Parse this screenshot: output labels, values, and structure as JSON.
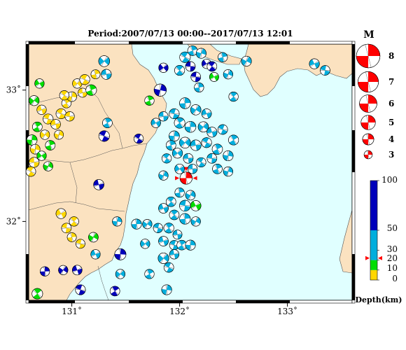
{
  "title": "Period:2007/07/13 00:00--2017/07/13 12:01",
  "map": {
    "lon_range": [
      130.6,
      133.6
    ],
    "lat_range": [
      31.4,
      33.35
    ],
    "lon_ticks": [
      {
        "value": 131,
        "label": "131˚"
      },
      {
        "value": 132,
        "label": "132˚"
      },
      {
        "value": 133,
        "label": "133˚"
      }
    ],
    "lat_ticks": [
      {
        "value": 33,
        "label": "33˚"
      },
      {
        "value": 32,
        "label": "32˚"
      }
    ],
    "colors": {
      "land": "#fbe2c0",
      "sea": "#e0ffff",
      "coast": "#555555",
      "red": "#ff0000"
    }
  },
  "magnitude_legend": {
    "header": "M",
    "entries": [
      {
        "label": "8",
        "mag": 8
      },
      {
        "label": "7",
        "mag": 7
      },
      {
        "label": "6",
        "mag": 6
      },
      {
        "label": "5",
        "mag": 5
      },
      {
        "label": "4",
        "mag": 4
      },
      {
        "label": "3",
        "mag": 3
      }
    ]
  },
  "depth_legend": {
    "unit_label": "Depth(km)",
    "max": 100,
    "ticks": [
      {
        "label": "100",
        "value": 100
      },
      {
        "label": "50",
        "value": 50
      },
      {
        "label": "30",
        "value": 30
      },
      {
        "label": "20",
        "value": 20
      },
      {
        "label": "10",
        "value": 10
      },
      {
        "label": "0",
        "value": 0
      }
    ],
    "bands": [
      {
        "from": 0,
        "to": 10,
        "color": "#ffd700"
      },
      {
        "from": 10,
        "to": 20,
        "color": "#00dd00"
      },
      {
        "from": 20,
        "to": 50,
        "color": "#00aedd"
      },
      {
        "from": 50,
        "to": 100,
        "color": "#0000bb"
      }
    ],
    "pointer_depth": 22
  },
  "events": [
    {
      "lon": 132.06,
      "lat": 32.33,
      "depth": 22,
      "mag": 4.3,
      "highlight": true
    },
    {
      "lon": 130.65,
      "lat": 32.92,
      "depth": 12,
      "mag": 3.6
    },
    {
      "lon": 130.72,
      "lat": 32.85,
      "depth": 5,
      "mag": 3.4
    },
    {
      "lon": 130.78,
      "lat": 32.78,
      "depth": 4,
      "mag": 3.6
    },
    {
      "lon": 130.68,
      "lat": 32.72,
      "depth": 12,
      "mag": 3.5
    },
    {
      "lon": 130.63,
      "lat": 32.62,
      "depth": 14,
      "mag": 3.7
    },
    {
      "lon": 130.75,
      "lat": 32.66,
      "depth": 8,
      "mag": 3.4
    },
    {
      "lon": 130.85,
      "lat": 32.74,
      "depth": 6,
      "mag": 3.5
    },
    {
      "lon": 130.9,
      "lat": 32.82,
      "depth": 7,
      "mag": 3.6
    },
    {
      "lon": 130.95,
      "lat": 32.9,
      "depth": 5,
      "mag": 3.4
    },
    {
      "lon": 131.0,
      "lat": 32.95,
      "depth": 6,
      "mag": 3.5
    },
    {
      "lon": 131.05,
      "lat": 33.05,
      "depth": 8,
      "mag": 3.4
    },
    {
      "lon": 131.1,
      "lat": 32.98,
      "depth": 4,
      "mag": 3.3
    },
    {
      "lon": 131.12,
      "lat": 33.08,
      "depth": 5,
      "mag": 3.6
    },
    {
      "lon": 131.18,
      "lat": 33.0,
      "depth": 12,
      "mag": 3.8
    },
    {
      "lon": 130.66,
      "lat": 32.55,
      "depth": 6,
      "mag": 3.5
    },
    {
      "lon": 130.72,
      "lat": 32.5,
      "depth": 13,
      "mag": 3.4
    },
    {
      "lon": 130.65,
      "lat": 32.45,
      "depth": 8,
      "mag": 3.6
    },
    {
      "lon": 130.62,
      "lat": 32.38,
      "depth": 5,
      "mag": 3.5
    },
    {
      "lon": 130.8,
      "lat": 32.58,
      "depth": 12,
      "mag": 3.5
    },
    {
      "lon": 130.88,
      "lat": 32.66,
      "depth": 9,
      "mag": 3.3
    },
    {
      "lon": 130.7,
      "lat": 33.05,
      "depth": 14,
      "mag": 3.4
    },
    {
      "lon": 130.98,
      "lat": 32.8,
      "depth": 4,
      "mag": 3.4
    },
    {
      "lon": 130.93,
      "lat": 32.96,
      "depth": 6,
      "mag": 3.4
    },
    {
      "lon": 131.22,
      "lat": 33.12,
      "depth": 4,
      "mag": 3.3
    },
    {
      "lon": 130.78,
      "lat": 32.42,
      "depth": 13,
      "mag": 3.4
    },
    {
      "lon": 130.9,
      "lat": 32.06,
      "depth": 5,
      "mag": 3.6
    },
    {
      "lon": 130.95,
      "lat": 31.95,
      "depth": 4,
      "mag": 3.5
    },
    {
      "lon": 131.02,
      "lat": 32.0,
      "depth": 5,
      "mag": 3.4
    },
    {
      "lon": 131.0,
      "lat": 31.88,
      "depth": 8,
      "mag": 3.3
    },
    {
      "lon": 131.2,
      "lat": 31.88,
      "depth": 14,
      "mag": 3.5
    },
    {
      "lon": 131.22,
      "lat": 31.75,
      "depth": 28,
      "mag": 3.4
    },
    {
      "lon": 131.08,
      "lat": 31.83,
      "depth": 8,
      "mag": 3.3
    },
    {
      "lon": 130.68,
      "lat": 31.45,
      "depth": 14,
      "mag": 3.8
    },
    {
      "lon": 130.75,
      "lat": 31.62,
      "depth": 60,
      "mag": 3.4
    },
    {
      "lon": 130.92,
      "lat": 31.63,
      "depth": 70,
      "mag": 3.4
    },
    {
      "lon": 131.05,
      "lat": 31.63,
      "depth": 60,
      "mag": 3.5
    },
    {
      "lon": 131.08,
      "lat": 31.48,
      "depth": 70,
      "mag": 3.6
    },
    {
      "lon": 131.4,
      "lat": 31.47,
      "depth": 60,
      "mag": 3.5
    },
    {
      "lon": 131.45,
      "lat": 31.75,
      "depth": 80,
      "mag": 4.0
    },
    {
      "lon": 131.45,
      "lat": 31.6,
      "depth": 40,
      "mag": 3.4
    },
    {
      "lon": 131.25,
      "lat": 32.28,
      "depth": 80,
      "mag": 3.7
    },
    {
      "lon": 131.3,
      "lat": 32.65,
      "depth": 80,
      "mag": 3.8
    },
    {
      "lon": 131.33,
      "lat": 32.75,
      "depth": 30,
      "mag": 3.5
    },
    {
      "lon": 131.42,
      "lat": 32.0,
      "depth": 30,
      "mag": 3.4
    },
    {
      "lon": 131.3,
      "lat": 33.22,
      "depth": 25,
      "mag": 3.9
    },
    {
      "lon": 131.32,
      "lat": 33.12,
      "depth": 30,
      "mag": 3.6
    },
    {
      "lon": 131.62,
      "lat": 32.63,
      "depth": 60,
      "mag": 3.4
    },
    {
      "lon": 131.72,
      "lat": 32.92,
      "depth": 18,
      "mag": 3.4
    },
    {
      "lon": 131.82,
      "lat": 33.0,
      "depth": 70,
      "mag": 4.3
    },
    {
      "lon": 131.85,
      "lat": 33.17,
      "depth": 70,
      "mag": 3.4
    },
    {
      "lon": 131.85,
      "lat": 32.8,
      "depth": 35,
      "mag": 3.4
    },
    {
      "lon": 132.05,
      "lat": 33.25,
      "depth": 40,
      "mag": 3.8
    },
    {
      "lon": 132.12,
      "lat": 33.3,
      "depth": 35,
      "mag": 3.5
    },
    {
      "lon": 132.2,
      "lat": 33.28,
      "depth": 45,
      "mag": 3.6
    },
    {
      "lon": 132.25,
      "lat": 33.2,
      "depth": 55,
      "mag": 3.4
    },
    {
      "lon": 132.1,
      "lat": 33.18,
      "depth": 70,
      "mag": 3.5
    },
    {
      "lon": 132.3,
      "lat": 33.18,
      "depth": 80,
      "mag": 3.5
    },
    {
      "lon": 132.4,
      "lat": 33.25,
      "depth": 35,
      "mag": 3.4
    },
    {
      "lon": 132.45,
      "lat": 33.12,
      "depth": 40,
      "mag": 3.4
    },
    {
      "lon": 132.32,
      "lat": 33.1,
      "depth": 15,
      "mag": 3.3
    },
    {
      "lon": 132.15,
      "lat": 33.1,
      "depth": 60,
      "mag": 3.5
    },
    {
      "lon": 132.0,
      "lat": 33.15,
      "depth": 35,
      "mag": 3.6
    },
    {
      "lon": 132.18,
      "lat": 33.02,
      "depth": 40,
      "mag": 3.4
    },
    {
      "lon": 132.62,
      "lat": 33.22,
      "depth": 45,
      "mag": 3.6
    },
    {
      "lon": 133.25,
      "lat": 33.2,
      "depth": 40,
      "mag": 3.6
    },
    {
      "lon": 133.35,
      "lat": 33.15,
      "depth": 35,
      "mag": 3.5
    },
    {
      "lon": 132.5,
      "lat": 32.95,
      "depth": 35,
      "mag": 3.4
    },
    {
      "lon": 132.05,
      "lat": 32.9,
      "depth": 40,
      "mag": 3.9
    },
    {
      "lon": 132.15,
      "lat": 32.85,
      "depth": 35,
      "mag": 3.7
    },
    {
      "lon": 132.25,
      "lat": 32.82,
      "depth": 40,
      "mag": 3.5
    },
    {
      "lon": 131.95,
      "lat": 32.82,
      "depth": 45,
      "mag": 3.6
    },
    {
      "lon": 132.0,
      "lat": 32.75,
      "depth": 35,
      "mag": 3.8
    },
    {
      "lon": 132.1,
      "lat": 32.72,
      "depth": 40,
      "mag": 3.9
    },
    {
      "lon": 132.22,
      "lat": 32.72,
      "depth": 35,
      "mag": 3.7
    },
    {
      "lon": 132.3,
      "lat": 32.68,
      "depth": 40,
      "mag": 3.6
    },
    {
      "lon": 132.4,
      "lat": 32.7,
      "depth": 35,
      "mag": 3.5
    },
    {
      "lon": 132.5,
      "lat": 32.62,
      "depth": 40,
      "mag": 3.6
    },
    {
      "lon": 131.95,
      "lat": 32.65,
      "depth": 45,
      "mag": 3.7
    },
    {
      "lon": 132.05,
      "lat": 32.6,
      "depth": 35,
      "mag": 3.9
    },
    {
      "lon": 132.15,
      "lat": 32.58,
      "depth": 40,
      "mag": 3.8
    },
    {
      "lon": 132.25,
      "lat": 32.6,
      "depth": 35,
      "mag": 3.6
    },
    {
      "lon": 132.35,
      "lat": 32.55,
      "depth": 40,
      "mag": 3.7
    },
    {
      "lon": 132.45,
      "lat": 32.5,
      "depth": 35,
      "mag": 3.6
    },
    {
      "lon": 131.98,
      "lat": 32.52,
      "depth": 40,
      "mag": 3.6
    },
    {
      "lon": 132.08,
      "lat": 32.48,
      "depth": 35,
      "mag": 3.5
    },
    {
      "lon": 132.2,
      "lat": 32.45,
      "depth": 40,
      "mag": 3.4
    },
    {
      "lon": 132.35,
      "lat": 32.4,
      "depth": 35,
      "mag": 3.5
    },
    {
      "lon": 132.45,
      "lat": 32.38,
      "depth": 40,
      "mag": 3.4
    },
    {
      "lon": 132.0,
      "lat": 32.4,
      "depth": 35,
      "mag": 3.5
    },
    {
      "lon": 132.12,
      "lat": 32.4,
      "depth": 40,
      "mag": 3.4
    },
    {
      "lon": 131.88,
      "lat": 32.48,
      "depth": 45,
      "mag": 3.4
    },
    {
      "lon": 131.92,
      "lat": 32.58,
      "depth": 35,
      "mag": 3.5
    },
    {
      "lon": 131.85,
      "lat": 32.35,
      "depth": 45,
      "mag": 3.4
    },
    {
      "lon": 131.78,
      "lat": 32.75,
      "depth": 40,
      "mag": 3.4
    },
    {
      "lon": 132.3,
      "lat": 32.48,
      "depth": 45,
      "mag": 3.5
    },
    {
      "lon": 131.92,
      "lat": 32.15,
      "depth": 35,
      "mag": 3.5
    },
    {
      "lon": 132.0,
      "lat": 32.22,
      "depth": 30,
      "mag": 3.4
    },
    {
      "lon": 132.1,
      "lat": 32.2,
      "depth": 35,
      "mag": 3.5
    },
    {
      "lon": 132.15,
      "lat": 32.12,
      "depth": 18,
      "mag": 3.7
    },
    {
      "lon": 132.05,
      "lat": 32.12,
      "depth": 25,
      "mag": 3.9
    },
    {
      "lon": 131.95,
      "lat": 32.05,
      "depth": 40,
      "mag": 3.5
    },
    {
      "lon": 132.05,
      "lat": 32.02,
      "depth": 35,
      "mag": 3.8
    },
    {
      "lon": 132.15,
      "lat": 32.0,
      "depth": 30,
      "mag": 3.4
    },
    {
      "lon": 131.85,
      "lat": 32.1,
      "depth": 40,
      "mag": 3.5
    },
    {
      "lon": 131.8,
      "lat": 31.95,
      "depth": 35,
      "mag": 3.4
    },
    {
      "lon": 131.9,
      "lat": 31.95,
      "depth": 40,
      "mag": 3.6
    },
    {
      "lon": 131.6,
      "lat": 31.98,
      "depth": 40,
      "mag": 3.6
    },
    {
      "lon": 131.7,
      "lat": 31.98,
      "depth": 45,
      "mag": 3.4
    },
    {
      "lon": 131.85,
      "lat": 31.85,
      "depth": 35,
      "mag": 3.5
    },
    {
      "lon": 131.95,
      "lat": 31.82,
      "depth": 40,
      "mag": 3.4
    },
    {
      "lon": 132.02,
      "lat": 31.82,
      "depth": 30,
      "mag": 3.5
    },
    {
      "lon": 132.1,
      "lat": 31.82,
      "depth": 35,
      "mag": 3.6
    },
    {
      "lon": 131.85,
      "lat": 31.72,
      "depth": 40,
      "mag": 3.8
    },
    {
      "lon": 131.95,
      "lat": 31.75,
      "depth": 35,
      "mag": 3.4
    },
    {
      "lon": 131.9,
      "lat": 31.65,
      "depth": 40,
      "mag": 3.5
    },
    {
      "lon": 131.72,
      "lat": 31.6,
      "depth": 40,
      "mag": 3.4
    },
    {
      "lon": 131.88,
      "lat": 31.48,
      "depth": 35,
      "mag": 3.6
    },
    {
      "lon": 131.68,
      "lat": 31.83,
      "depth": 35,
      "mag": 3.4
    },
    {
      "lon": 131.98,
      "lat": 31.9,
      "depth": 40,
      "mag": 3.3
    }
  ]
}
